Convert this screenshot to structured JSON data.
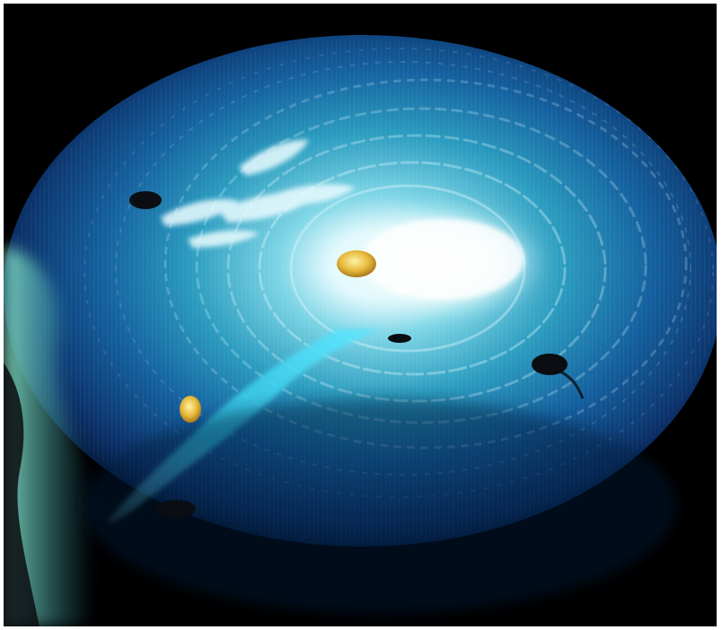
{
  "image": {
    "subject": "swirl-vortex",
    "colors": {
      "background": "#000000",
      "frame": "#ffffff",
      "deep_blue": "#0b3f86",
      "teal": "#2bb4c6",
      "cyan_jet": "#36d4ee",
      "core_white": "#f6fbfb",
      "gold": "#e6b93a",
      "dark_blob": "#0a0d12",
      "green_mist": "#5fbfa5"
    }
  }
}
